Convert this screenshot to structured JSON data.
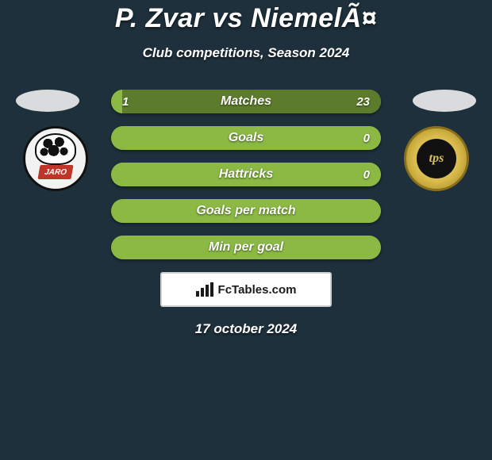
{
  "title": "P. Zvar vs NiemelÃ¤",
  "subtitle": "Club competitions, Season 2024",
  "date_text": "17 october 2024",
  "watermark_text": "FcTables.com",
  "colors": {
    "background": "#1e303b",
    "bar_left": "#8bb944",
    "bar_right": "#5c7c2c",
    "bar_track": "#8bb944",
    "silhouette_left": "#d9dbdc",
    "silhouette_right": "#d9dbdc"
  },
  "left_badge": {
    "label": "JARO"
  },
  "right_badge": {
    "label": "tps"
  },
  "bars": [
    {
      "label": "Matches",
      "left_value": "1",
      "right_value": "23",
      "left_pct": 4,
      "right_pct": 96,
      "show_values": true
    },
    {
      "label": "Goals",
      "left_value": "",
      "right_value": "0",
      "left_pct": 100,
      "right_pct": 0,
      "show_values": true
    },
    {
      "label": "Hattricks",
      "left_value": "",
      "right_value": "0",
      "left_pct": 100,
      "right_pct": 0,
      "show_values": true
    },
    {
      "label": "Goals per match",
      "left_value": "",
      "right_value": "",
      "left_pct": 100,
      "right_pct": 0,
      "show_values": false
    },
    {
      "label": "Min per goal",
      "left_value": "",
      "right_value": "",
      "left_pct": 100,
      "right_pct": 0,
      "show_values": false
    }
  ]
}
